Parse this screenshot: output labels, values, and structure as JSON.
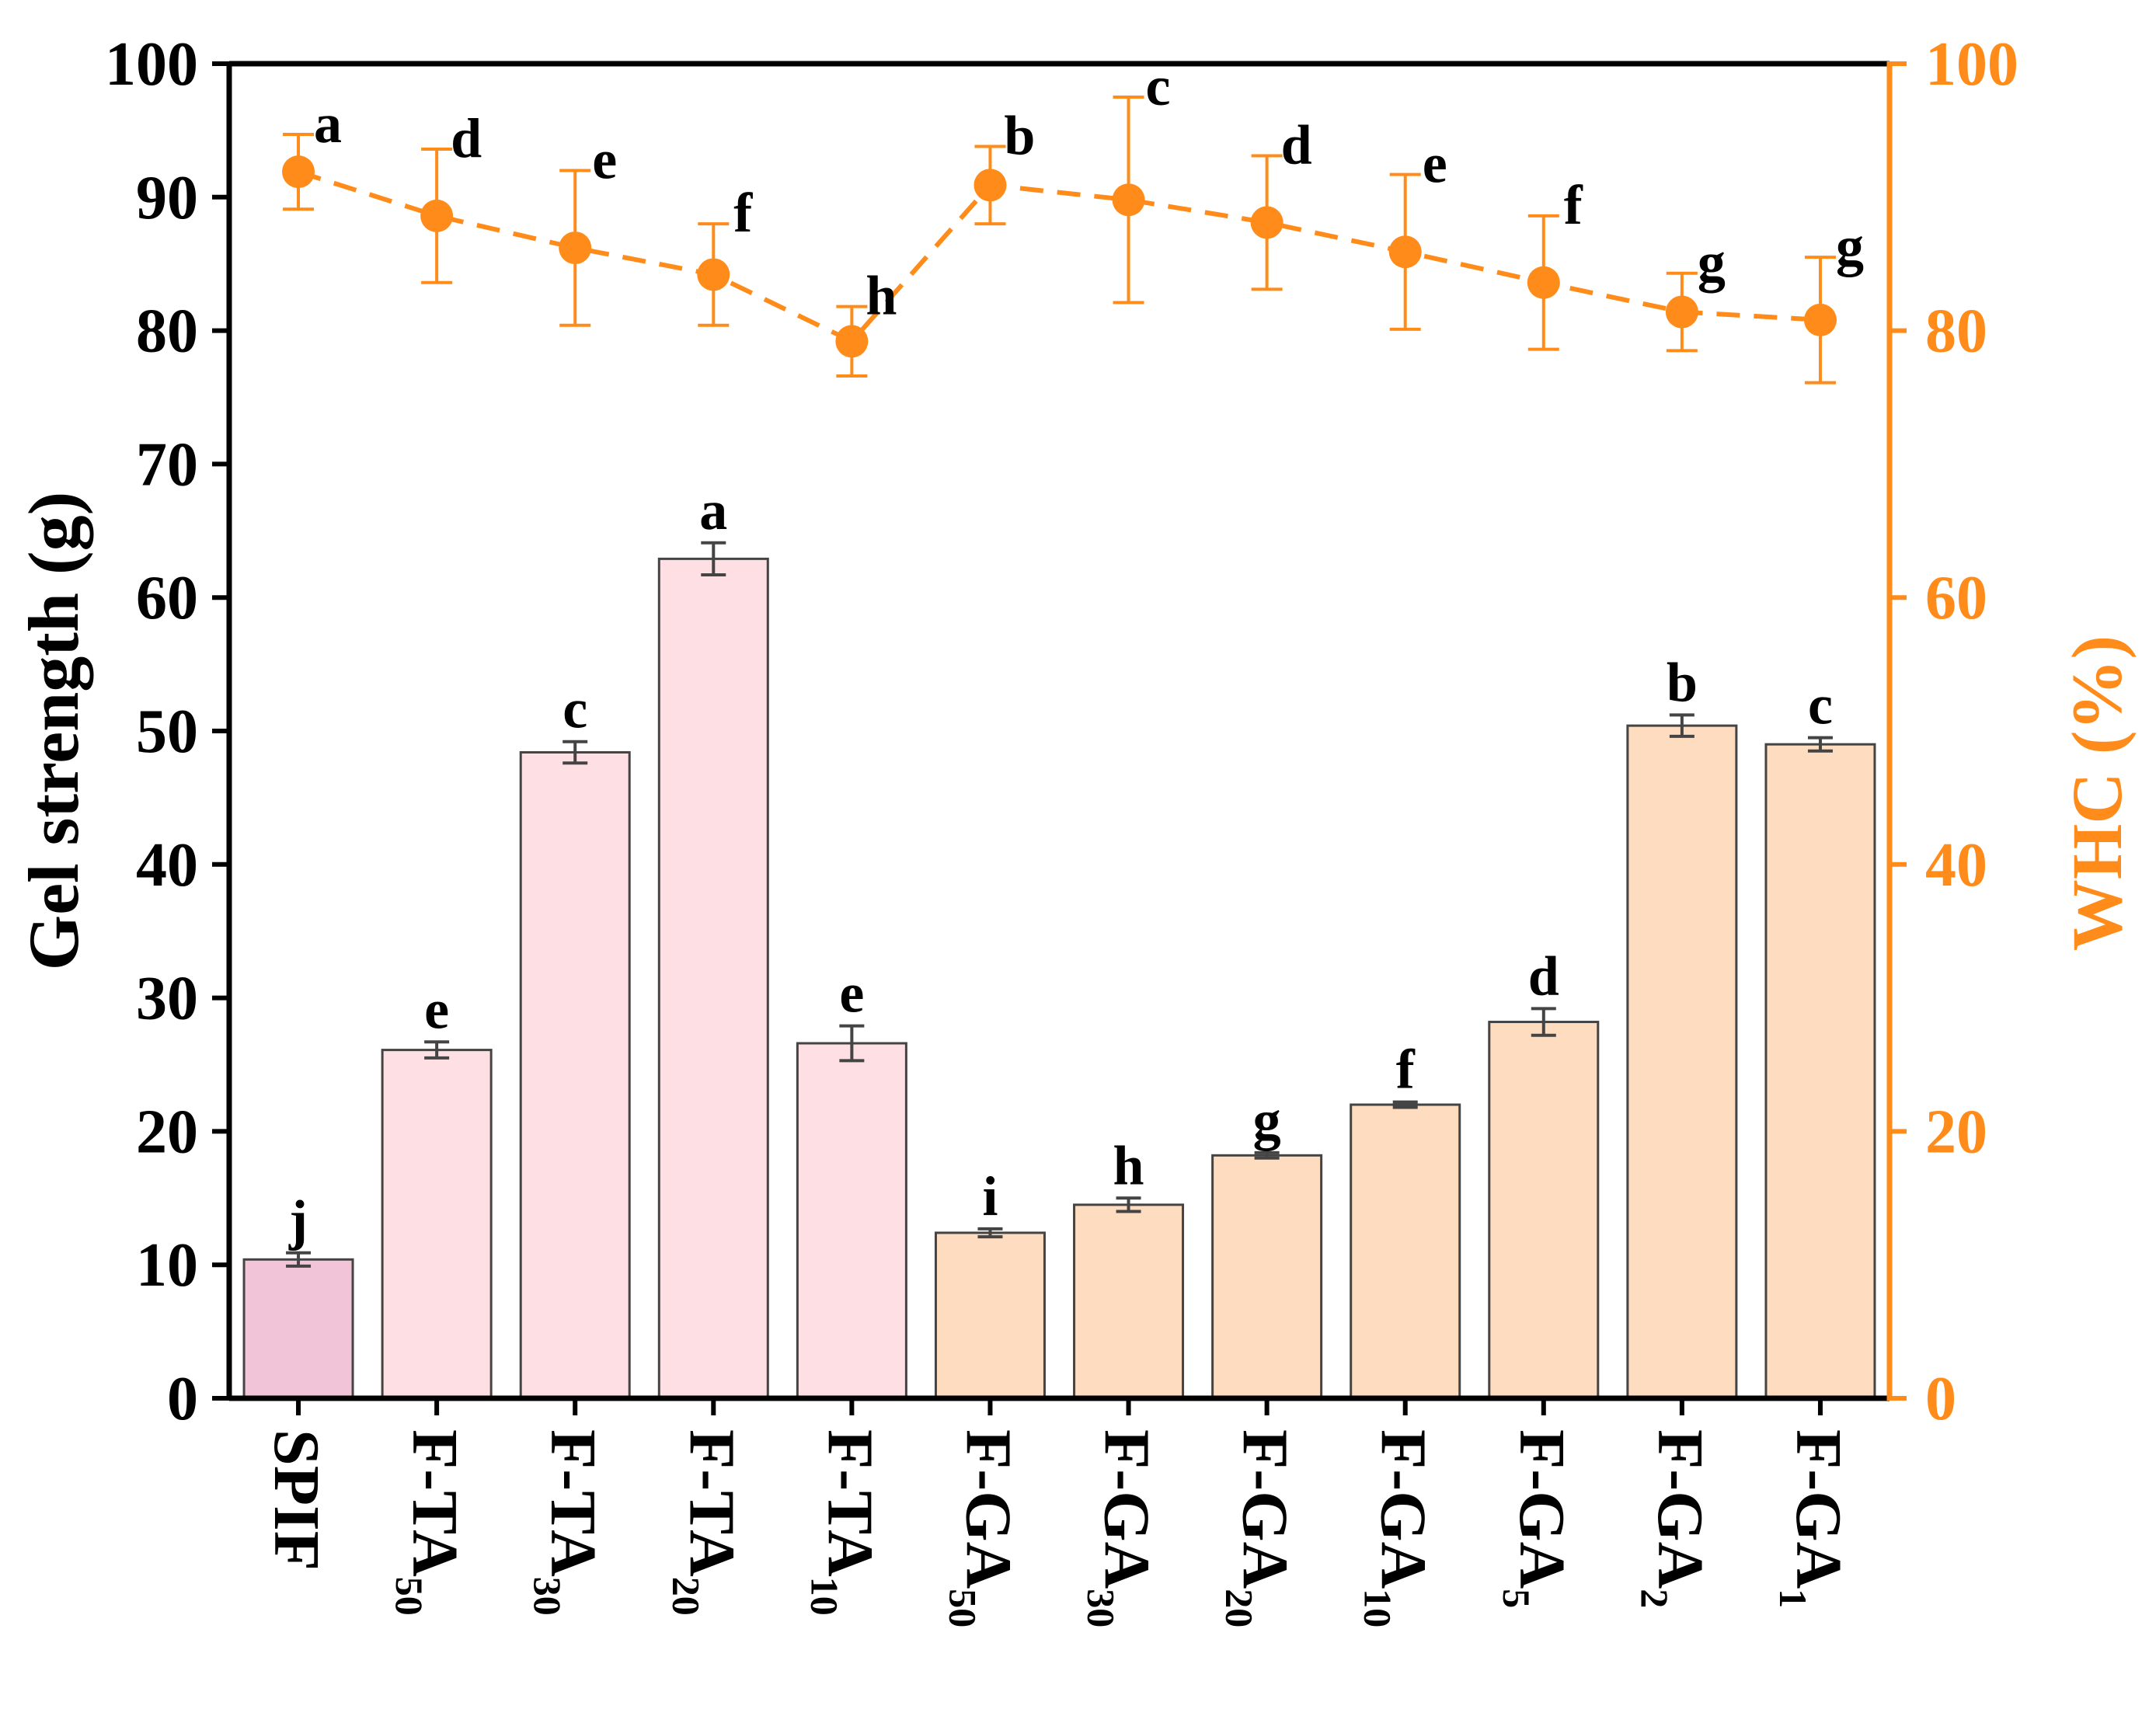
{
  "chart_data": {
    "type": "bar",
    "categories": [
      {
        "base": "SPIF",
        "sub": ""
      },
      {
        "base": "F-TA",
        "sub": "50"
      },
      {
        "base": "F-TA",
        "sub": "30"
      },
      {
        "base": "F-TA",
        "sub": "20"
      },
      {
        "base": "F-TA",
        "sub": "10"
      },
      {
        "base": "F-GA",
        "sub": "50"
      },
      {
        "base": "F-GA",
        "sub": "30"
      },
      {
        "base": "F-GA",
        "sub": "20"
      },
      {
        "base": "F-GA",
        "sub": "10"
      },
      {
        "base": "F-GA",
        "sub": "5"
      },
      {
        "base": "F-GA",
        "sub": "2"
      },
      {
        "base": "F-GA",
        "sub": "1"
      }
    ],
    "bar_series": {
      "name": "Gel strength",
      "values": [
        10.4,
        26.1,
        48.4,
        62.9,
        26.6,
        12.4,
        14.5,
        18.2,
        22.0,
        28.2,
        50.4,
        49.0
      ],
      "errors": [
        0.5,
        0.6,
        0.8,
        1.2,
        1.3,
        0.3,
        0.5,
        0.2,
        0.2,
        1.0,
        0.8,
        0.5
      ],
      "letters": [
        "j",
        "e",
        "c",
        "a",
        "e",
        "i",
        "h",
        "g",
        "f",
        "d",
        "b",
        "c"
      ],
      "colors": [
        "#F2C4D8",
        "#FDDFE4",
        "#FDDFE4",
        "#FDDFE4",
        "#FDDFE4",
        "#FDDCC0",
        "#FDDCC0",
        "#FDDCC0",
        "#FDDCC0",
        "#FDDCC0",
        "#FDDCC0",
        "#FDDCC0"
      ],
      "edge_color": "#444444"
    },
    "line_series": {
      "name": "WHC",
      "values": [
        91.9,
        88.6,
        86.2,
        84.2,
        79.2,
        90.9,
        89.8,
        88.1,
        85.9,
        83.6,
        81.4,
        80.8
      ],
      "errors": [
        2.8,
        5.0,
        5.8,
        3.8,
        2.6,
        2.9,
        7.7,
        5.0,
        5.8,
        5.0,
        2.9,
        4.7
      ],
      "letters": [
        "a",
        "d",
        "e",
        "f",
        "h",
        "b",
        "c",
        "d",
        "e",
        "f",
        "g",
        "g"
      ],
      "color": "#FF8C1A"
    },
    "left_axis": {
      "label": "Gel strength (g)",
      "min": 0,
      "max": 100,
      "ticks": [
        0,
        10,
        20,
        30,
        40,
        50,
        60,
        70,
        80,
        90,
        100
      ]
    },
    "right_axis": {
      "label": "WHC (%)",
      "min": 0,
      "max": 100,
      "ticks": [
        0,
        20,
        40,
        60,
        80,
        100
      ],
      "color": "#FF8C1A"
    },
    "grid": false
  }
}
